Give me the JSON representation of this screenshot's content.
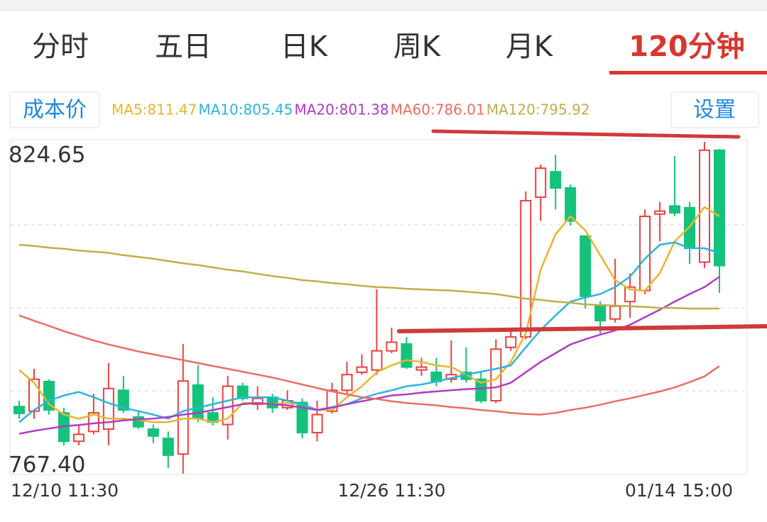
{
  "tabs": [
    "分时",
    "五日",
    "日K",
    "周K",
    "月K",
    "120分钟"
  ],
  "active_tab": 5,
  "cost_button": "成本价",
  "settings_button": "设置",
  "chart_data": {
    "type": "candlestick",
    "ylim": [
      767.4,
      824.65
    ],
    "yticks": [
      824.65,
      {
        "value": 767.4,
        "label": "767.40"
      }
    ],
    "grid_values": [
      810.34,
      796.03,
      781.71
    ],
    "grid": true,
    "up_color": "#e8413f",
    "down_color": "#14c27b",
    "categories": [
      "12/10 11:30",
      null,
      null,
      null,
      null,
      null,
      null,
      null,
      null,
      null,
      null,
      null,
      null,
      null,
      null,
      null,
      null,
      null,
      null,
      null,
      null,
      null,
      null,
      null,
      null,
      "12/26 11:30",
      null,
      null,
      null,
      null,
      null,
      null,
      null,
      null,
      null,
      null,
      null,
      null,
      null,
      null,
      null,
      null,
      null,
      null,
      null,
      null,
      null,
      "01/14 15:00"
    ],
    "open": [
      779.0,
      778.2,
      783.3,
      777.9,
      773.0,
      774.7,
      775.1,
      781.8,
      777.2,
      775.1,
      773.5,
      770.8,
      782.7,
      777.9,
      775.9,
      782.5,
      779.4,
      780.6,
      778.8,
      779.7,
      774.5,
      778.2,
      781.8,
      784.9,
      785.3,
      788.6,
      789.8,
      785.3,
      784.9,
      783.7,
      784.9,
      783.7,
      780.0,
      789.2,
      791.0,
      815.1,
      819.5,
      816.7,
      808.4,
      796.5,
      794.1,
      797.1,
      799.0,
      812.2,
      813.6,
      813.3,
      803.9,
      823.2
    ],
    "high": [
      780.0,
      785.5,
      783.7,
      778.8,
      775.7,
      781.2,
      786.5,
      784.3,
      778.2,
      775.9,
      774.7,
      789.8,
      786.1,
      780.6,
      784.3,
      783.1,
      782.5,
      781.2,
      781.8,
      780.4,
      780.0,
      783.1,
      786.7,
      788.0,
      799.2,
      792.6,
      791.0,
      787.4,
      787.4,
      790.4,
      789.2,
      784.9,
      790.6,
      792.2,
      816.1,
      820.7,
      822.4,
      817.3,
      808.5,
      797.1,
      804.5,
      802.0,
      813.0,
      814.3,
      822.2,
      814.3,
      824.65,
      823.4
    ],
    "low": [
      776.9,
      776.9,
      777.6,
      772.3,
      772.3,
      774.2,
      772.3,
      777.9,
      775.1,
      772.7,
      768.4,
      767.4,
      776.3,
      775.7,
      773.3,
      780.0,
      778.4,
      777.9,
      778.4,
      773.5,
      773.0,
      777.8,
      781.2,
      784.5,
      784.5,
      788.2,
      785.5,
      784.3,
      782.5,
      783.1,
      783.1,
      779.6,
      779.6,
      788.6,
      790.6,
      811.0,
      813.0,
      810.2,
      795.9,
      791.6,
      793.5,
      794.3,
      798.4,
      807.5,
      811.8,
      803.6,
      802.9,
      798.6
    ],
    "close": [
      777.8,
      783.7,
      778.4,
      773.0,
      774.2,
      777.9,
      782.1,
      778.4,
      775.5,
      773.9,
      770.6,
      783.4,
      776.9,
      776.3,
      782.5,
      780.4,
      780.4,
      778.8,
      780.0,
      774.5,
      777.6,
      781.8,
      784.5,
      785.8,
      788.6,
      790.1,
      785.8,
      785.8,
      783.3,
      784.5,
      783.7,
      780.0,
      788.9,
      791.0,
      814.5,
      820.1,
      816.7,
      811.0,
      798.0,
      793.8,
      796.3,
      799.6,
      811.8,
      812.7,
      812.4,
      806.3,
      823.2,
      803.3
    ],
    "series": [
      {
        "name": "MA5:811.47",
        "color": "#e8b52e",
        "values": [
          785.3,
          783.1,
          779.4,
          777.6,
          776.9,
          777.6,
          776.9,
          776.9,
          776.7,
          776.3,
          776.3,
          776.9,
          776.9,
          776.3,
          776.9,
          779.6,
          779.6,
          779.4,
          779.6,
          779.4,
          778.4,
          778.4,
          780.6,
          782.5,
          784.9,
          786.1,
          787.0,
          786.7,
          786.1,
          785.8,
          784.5,
          783.1,
          783.7,
          786.7,
          791.6,
          802.6,
          808.7,
          811.8,
          809.4,
          805.1,
          800.8,
          799.2,
          799.0,
          802.0,
          807.5,
          810.0,
          813.4,
          811.8
        ]
      },
      {
        "name": "MA10:805.45",
        "color": "#2bb5dc",
        "values": [
          776.3,
          778.4,
          780.0,
          780.9,
          781.5,
          780.6,
          779.6,
          778.8,
          778.2,
          777.6,
          776.9,
          778.2,
          778.8,
          779.4,
          780.0,
          780.6,
          780.6,
          780.6,
          780.0,
          779.4,
          778.4,
          778.9,
          779.4,
          780.4,
          781.2,
          781.8,
          782.5,
          782.8,
          783.3,
          783.9,
          784.5,
          785.0,
          785.5,
          786.1,
          789.2,
          792.2,
          794.7,
          797.1,
          797.8,
          798.4,
          799.6,
          801.4,
          804.5,
          806.9,
          807.3,
          806.3,
          806.3,
          805.5
        ]
      },
      {
        "name": "MA20:801.38",
        "color": "#b03cc4",
        "values": [
          774.3,
          774.8,
          775.2,
          775.6,
          775.8,
          776.1,
          776.3,
          776.6,
          776.8,
          776.9,
          777.2,
          777.6,
          777.9,
          778.4,
          778.9,
          779.4,
          779.6,
          779.4,
          779.2,
          778.8,
          778.4,
          778.8,
          779.4,
          779.9,
          780.4,
          780.9,
          781.1,
          781.4,
          781.6,
          781.8,
          782.0,
          782.1,
          782.3,
          783.1,
          784.9,
          786.7,
          788.2,
          789.7,
          790.6,
          791.4,
          792.1,
          793.1,
          794.4,
          795.7,
          797.1,
          798.4,
          799.6,
          801.4
        ]
      },
      {
        "name": "MA60:786.01",
        "color": "#ea6e62",
        "values": [
          794.7,
          793.8,
          792.9,
          792.0,
          791.2,
          790.4,
          789.7,
          789.1,
          788.5,
          788.0,
          787.5,
          787.0,
          786.5,
          786.0,
          785.5,
          785.0,
          784.5,
          784.0,
          783.4,
          782.8,
          782.2,
          781.6,
          781.1,
          780.6,
          780.3,
          779.9,
          779.6,
          779.4,
          779.2,
          778.9,
          778.7,
          778.4,
          778.2,
          777.9,
          777.7,
          777.6,
          777.9,
          778.4,
          778.8,
          779.3,
          779.9,
          780.4,
          781.0,
          781.6,
          782.3,
          783.2,
          784.2,
          786.0
        ]
      },
      {
        "name": "MA120:795.92",
        "color": "#c2ad4a",
        "values": [
          806.9,
          806.7,
          806.4,
          806.2,
          805.9,
          805.7,
          805.5,
          805.1,
          804.8,
          804.5,
          804.1,
          803.7,
          803.4,
          803.0,
          802.6,
          802.3,
          801.9,
          801.5,
          801.2,
          800.8,
          800.6,
          800.3,
          800.1,
          799.8,
          799.6,
          799.5,
          799.3,
          799.2,
          799.1,
          799.0,
          798.8,
          798.6,
          798.4,
          798.0,
          797.6,
          797.4,
          797.1,
          796.9,
          796.6,
          796.5,
          796.4,
          796.3,
          796.2,
          796.0,
          796.0,
          795.9,
          795.9,
          795.9
        ]
      }
    ]
  }
}
